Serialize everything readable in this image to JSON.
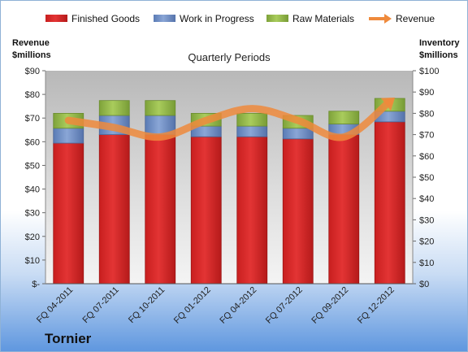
{
  "chart_data": {
    "type": "bar",
    "stacked": true,
    "title": "Quarterly Periods",
    "brand": "Tornier",
    "categories": [
      "FQ 04-2011",
      "FQ 07-2011",
      "FQ 10-2011",
      "FQ 01-2012",
      "FQ 04-2012",
      "FQ 07-2012",
      "FQ 09-2012",
      "FQ 12-2012"
    ],
    "left_axis": {
      "title_line1": "Revenue",
      "title_line2": "$millions",
      "ylim": [
        0,
        90
      ],
      "ticks": [
        0,
        10,
        20,
        30,
        40,
        50,
        60,
        70,
        80,
        90
      ],
      "tick_labels": [
        "$-",
        "$10",
        "$20",
        "$30",
        "$40",
        "$50",
        "$60",
        "$70",
        "$80",
        "$90"
      ]
    },
    "right_axis": {
      "title_line1": "Inventory",
      "title_line2": "$millions",
      "ylim": [
        0,
        100
      ],
      "ticks": [
        0,
        10,
        20,
        30,
        40,
        50,
        60,
        70,
        80,
        90,
        100
      ],
      "tick_labels": [
        "$0",
        "$10",
        "$20",
        "$30",
        "$40",
        "$50",
        "$60",
        "$70",
        "$80",
        "$90",
        "$100"
      ]
    },
    "series": [
      {
        "name": "Finished Goods",
        "axis": "right",
        "color": "#e02b2b",
        "values": [
          66,
          70,
          70,
          69,
          69,
          68,
          70,
          76
        ]
      },
      {
        "name": "Work in Progress",
        "axis": "right",
        "color": "#6f8fc8",
        "values": [
          7,
          9,
          9,
          5,
          5,
          5,
          5,
          5
        ]
      },
      {
        "name": "Raw Materials",
        "axis": "right",
        "color": "#92b84a",
        "values": [
          7,
          7,
          7,
          6,
          6,
          6,
          6,
          6
        ]
      },
      {
        "name": "Revenue",
        "axis": "left",
        "type": "line",
        "color": "#ef8a3c",
        "values": [
          69,
          66,
          62,
          69,
          74,
          69,
          62,
          77
        ]
      }
    ],
    "legend_position": "top",
    "grid": false
  }
}
